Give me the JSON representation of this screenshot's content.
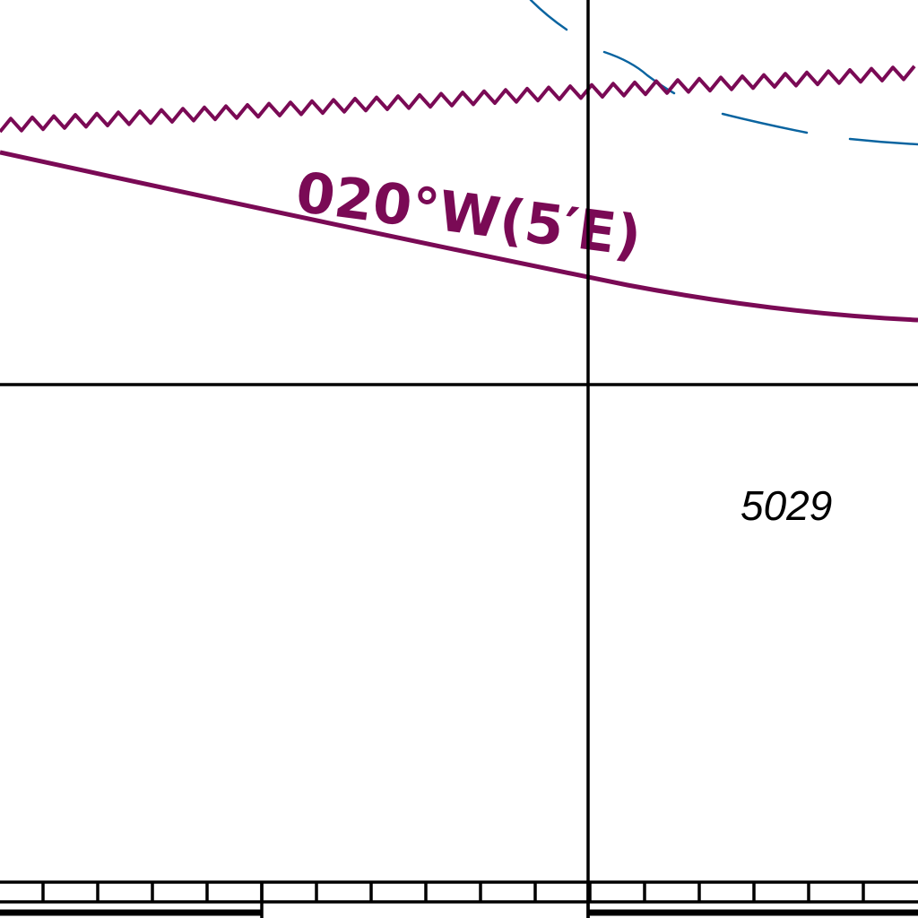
{
  "chart": {
    "isogonic_line_label": "020°W(5′E)",
    "depth_sounding": "5029"
  },
  "colors": {
    "background": "#ffffff",
    "isogonic_magenta": "#7a0a55",
    "depth_contour_blue": "#0a64a0",
    "graticule_black": "#000000"
  },
  "icons": {
    "restricted_area_boundary": "zigzag-line",
    "scale_bar": "latitude-scale-ticks"
  }
}
